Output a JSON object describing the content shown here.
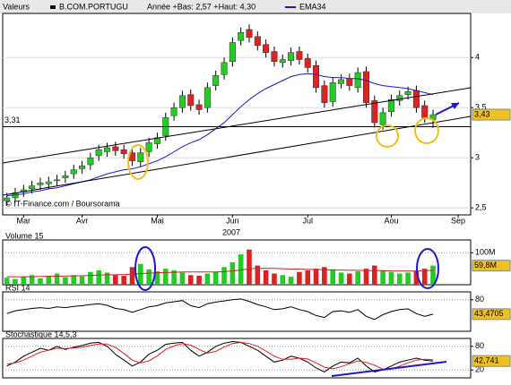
{
  "chart_data": [
    {
      "type": "candlestick",
      "header": {
        "label": "Valeurs",
        "symbol": "B.COM.PORTUGU",
        "range": "Année +Bas: 2,57 +Haut: 4,30"
      },
      "x_label": "2007",
      "footer": "© IT-Finance.com / Boursorama",
      "categories": [
        null,
        null,
        "Mar",
        null,
        null,
        null,
        null,
        null,
        null,
        "Avr",
        null,
        null,
        null,
        null,
        null,
        null,
        null,
        null,
        "Mai",
        null,
        null,
        null,
        null,
        null,
        null,
        null,
        null,
        "Jun",
        null,
        null,
        null,
        null,
        null,
        null,
        null,
        null,
        "Jul",
        null,
        null,
        null,
        null,
        null,
        null,
        null,
        null,
        null,
        "Aou",
        null,
        null,
        null,
        null,
        null,
        null,
        null,
        "Sep",
        null
      ],
      "open": [
        2.57,
        2.6,
        2.66,
        2.69,
        2.73,
        2.74,
        2.77,
        2.8,
        2.84,
        2.89,
        2.93,
        3.02,
        3.06,
        3.11,
        3.08,
        3.05,
        2.96,
        3.06,
        3.14,
        3.22,
        3.42,
        3.5,
        3.63,
        3.53,
        3.5,
        3.72,
        3.83,
        3.96,
        4.17,
        4.28,
        4.21,
        4.13,
        4.06,
        3.95,
        3.97,
        4.06,
        3.99,
        3.92,
        3.72,
        3.56,
        3.74,
        3.79,
        3.7,
        3.86,
        3.57,
        3.33,
        3.46,
        3.57,
        3.63,
        3.67,
        3.52,
        3.38,
        null,
        null,
        null,
        null
      ],
      "high": [
        2.65,
        2.7,
        2.73,
        2.77,
        2.8,
        2.81,
        2.83,
        2.87,
        2.93,
        2.97,
        3.05,
        3.13,
        3.15,
        3.16,
        3.13,
        3.1,
        3.1,
        3.2,
        3.25,
        3.45,
        3.55,
        3.67,
        3.68,
        3.58,
        3.75,
        3.87,
        4.0,
        4.2,
        4.3,
        4.33,
        4.26,
        4.18,
        4.11,
        4.03,
        4.1,
        4.11,
        4.04,
        3.97,
        3.77,
        3.8,
        3.83,
        3.84,
        3.9,
        3.91,
        3.62,
        3.5,
        3.63,
        3.67,
        3.71,
        3.72,
        3.57,
        3.48,
        null,
        null,
        null,
        null
      ],
      "low": [
        2.52,
        2.55,
        2.61,
        2.64,
        2.68,
        2.69,
        2.72,
        2.75,
        2.79,
        2.84,
        2.88,
        2.97,
        3.01,
        3.02,
        2.99,
        2.92,
        2.91,
        3.01,
        3.09,
        3.17,
        3.37,
        3.45,
        3.47,
        3.43,
        3.45,
        3.67,
        3.78,
        3.91,
        4.12,
        4.15,
        4.07,
        4.0,
        3.91,
        3.9,
        3.92,
        3.93,
        3.85,
        3.65,
        3.5,
        3.51,
        3.69,
        3.67,
        3.65,
        3.5,
        3.3,
        3.28,
        3.41,
        3.52,
        3.58,
        3.45,
        3.35,
        3.3,
        null,
        null,
        null,
        null
      ],
      "close": [
        2.6,
        2.65,
        2.68,
        2.72,
        2.75,
        2.76,
        2.78,
        2.82,
        2.88,
        2.92,
        3.0,
        3.08,
        3.1,
        3.07,
        3.04,
        2.97,
        3.05,
        3.15,
        3.2,
        3.4,
        3.5,
        3.62,
        3.52,
        3.48,
        3.7,
        3.82,
        3.95,
        4.15,
        4.25,
        4.2,
        4.12,
        4.05,
        3.96,
        3.98,
        4.05,
        3.98,
        3.9,
        3.7,
        3.55,
        3.75,
        3.78,
        3.72,
        3.85,
        3.55,
        3.35,
        3.45,
        3.58,
        3.62,
        3.66,
        3.5,
        3.4,
        3.43,
        null,
        null,
        null,
        null
      ],
      "up_color": "#22cc22",
      "down_color": "#dd2222",
      "ema": {
        "name": "EMA34",
        "color": "#1a1acc",
        "values": [
          2.62,
          2.63,
          2.64,
          2.66,
          2.67,
          2.69,
          2.7,
          2.72,
          2.74,
          2.76,
          2.78,
          2.81,
          2.84,
          2.86,
          2.88,
          2.89,
          2.91,
          2.94,
          2.97,
          3.01,
          3.06,
          3.11,
          3.15,
          3.18,
          3.23,
          3.29,
          3.35,
          3.43,
          3.51,
          3.58,
          3.64,
          3.69,
          3.73,
          3.77,
          3.81,
          3.83,
          3.84,
          3.83,
          3.81,
          3.8,
          3.8,
          3.79,
          3.79,
          3.77,
          3.74,
          3.72,
          3.71,
          3.7,
          3.69,
          3.67,
          3.65,
          3.63,
          null,
          null,
          null,
          null
        ]
      },
      "reference_line": {
        "value": 3.31,
        "label": "3,31"
      },
      "last_price": {
        "value": 3.43,
        "label": "3,43"
      },
      "ylim": [
        2.43,
        4.44
      ],
      "yticks": [
        {
          "value": 2.5,
          "label": "2,5"
        },
        3,
        {
          "value": 3.5,
          "label": "3,5"
        },
        4
      ]
    },
    {
      "type": "bar",
      "title": "Volume 15",
      "values": [
        22000000,
        18000000,
        25000000,
        30000000,
        20000000,
        28000000,
        35000000,
        24000000,
        30000000,
        26000000,
        40000000,
        45000000,
        38000000,
        30000000,
        28000000,
        55000000,
        65000000,
        48000000,
        42000000,
        50000000,
        45000000,
        38000000,
        30000000,
        28000000,
        35000000,
        40000000,
        55000000,
        70000000,
        95000000,
        110000000,
        60000000,
        45000000,
        35000000,
        30000000,
        25000000,
        40000000,
        45000000,
        50000000,
        55000000,
        48000000,
        38000000,
        35000000,
        42000000,
        50000000,
        60000000,
        45000000,
        40000000,
        35000000,
        38000000,
        42000000,
        50000000,
        59800000,
        null,
        null,
        null,
        null
      ],
      "ma": {
        "color": "#cc2222",
        "values": [
          25000000,
          25000000,
          25000000,
          25000000,
          26000000,
          26000000,
          27000000,
          27000000,
          28000000,
          28000000,
          29000000,
          30000000,
          31000000,
          31000000,
          32000000,
          33000000,
          35000000,
          36000000,
          37000000,
          38000000,
          39000000,
          40000000,
          40000000,
          40000000,
          40000000,
          40000000,
          41000000,
          43000000,
          46000000,
          50000000,
          51000000,
          51000000,
          51000000,
          50000000,
          49000000,
          49000000,
          48000000,
          48000000,
          47000000,
          46000000,
          46000000,
          45000000,
          45000000,
          44000000,
          44000000,
          44000000,
          43000000,
          43000000,
          43000000,
          43000000,
          44000000,
          45000000,
          null,
          null,
          null,
          null
        ]
      },
      "last": {
        "value": 59800000,
        "label": "59,8M"
      },
      "ylim": [
        0,
        140000000
      ],
      "yticks": [
        {
          "value": 100000000,
          "label": "100M"
        }
      ]
    },
    {
      "type": "line",
      "title": "RSI 14",
      "color": "#000000",
      "values": [
        45,
        52,
        55,
        58,
        60,
        58,
        62,
        60,
        63,
        65,
        68,
        70,
        66,
        58,
        55,
        48,
        55,
        62,
        65,
        72,
        75,
        78,
        65,
        60,
        70,
        74,
        77,
        80,
        82,
        76,
        68,
        62,
        55,
        57,
        62,
        55,
        50,
        40,
        35,
        50,
        52,
        48,
        55,
        38,
        30,
        42,
        50,
        55,
        57,
        45,
        38,
        43.4705,
        null,
        null,
        null,
        null
      ],
      "last": {
        "value": 43.4705,
        "label": "43,4705"
      },
      "ylim": [
        0,
        100
      ],
      "yticks": [
        80
      ]
    },
    {
      "type": "line",
      "title": "Stochastique 14,5,3",
      "series": [
        {
          "color": "#000000",
          "values": [
            30,
            40,
            55,
            65,
            75,
            70,
            80,
            72,
            78,
            82,
            88,
            90,
            80,
            60,
            45,
            30,
            40,
            60,
            70,
            85,
            88,
            90,
            70,
            55,
            65,
            80,
            88,
            92,
            90,
            80,
            70,
            55,
            40,
            45,
            55,
            50,
            40,
            25,
            15,
            30,
            40,
            38,
            50,
            30,
            15,
            20,
            30,
            40,
            45,
            50,
            45,
            42.741,
            null,
            null,
            null,
            null
          ]
        },
        {
          "color": "#dd2222",
          "values": [
            35,
            38,
            45,
            55,
            65,
            70,
            75,
            74,
            76,
            78,
            82,
            86,
            86,
            77,
            62,
            45,
            38,
            43,
            56,
            72,
            81,
            87,
            83,
            72,
            63,
            67,
            78,
            87,
            90,
            87,
            80,
            68,
            55,
            47,
            47,
            50,
            48,
            38,
            27,
            23,
            28,
            36,
            43,
            39,
            32,
            22,
            22,
            30,
            38,
            45,
            47,
            46,
            null,
            null,
            null,
            null
          ]
        }
      ],
      "last": {
        "value": 42.741,
        "label": "42,741"
      },
      "ylim": [
        0,
        100
      ],
      "yticks": [
        80,
        20
      ]
    }
  ]
}
